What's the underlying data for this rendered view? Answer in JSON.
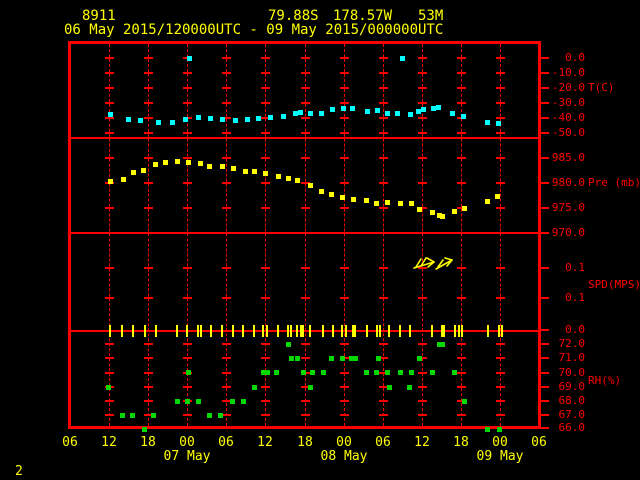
{
  "header": {
    "station_id": "8911",
    "lat": "79.88S",
    "lon": "178.57W",
    "elevation": "53M",
    "time_range": "06 May 2015/120000UTC - 09 May 2015/000000UTC"
  },
  "page_number": "2",
  "x_axis": {
    "hour_labels": [
      "06",
      "12",
      "18",
      "00",
      "06",
      "12",
      "18",
      "00",
      "06",
      "12",
      "18",
      "00",
      "06"
    ],
    "date_labels": [
      "07 May",
      "08 May",
      "09 May"
    ]
  },
  "y_axes": {
    "temperature": {
      "unit_label": "T(C)",
      "tick_labels": [
        "0.0",
        "-10.0",
        "-20.0",
        "-30.0",
        "-40.0",
        "-50.0"
      ]
    },
    "pressure": {
      "unit_label": "Pre (mb)",
      "tick_labels": [
        "985.0",
        "980.0",
        "975.0",
        "970.0"
      ]
    },
    "wind": {
      "unit_label": "SPD(MPS)",
      "tick_labels": [
        "0.1",
        "0.1",
        "0.0"
      ]
    },
    "humidity": {
      "unit_label": "RH(%)",
      "tick_labels": [
        "72.0",
        "71.0",
        "70.0",
        "69.0",
        "68.0",
        "67.0",
        "66.0"
      ]
    }
  },
  "colors": {
    "background": "#000000",
    "frame": "#ff0000",
    "text_yellow": "#ffff00",
    "temperature": "#00ffff",
    "pressure": "#ffff00",
    "wind": "#ffff00",
    "humidity": "#00d800"
  },
  "chart_data": [
    {
      "type": "scatter",
      "series_key": "temperature",
      "name": "Temperature",
      "ylabel": "T(C)",
      "x_unit": "hours since 06 May 2015 06UTC",
      "xlim": [
        0,
        72
      ],
      "ylim": [
        -55,
        5
      ],
      "points": [
        [
          6.1,
          -37.3
        ],
        [
          8.9,
          -40.7
        ],
        [
          10.7,
          -41.3
        ],
        [
          13.5,
          -42.7
        ],
        [
          15.7,
          -42.7
        ],
        [
          17.7,
          -40.7
        ],
        [
          18.3,
          0.0
        ],
        [
          19.7,
          -39.3
        ],
        [
          21.5,
          -40.0
        ],
        [
          23.3,
          -40.7
        ],
        [
          25.3,
          -41.3
        ],
        [
          27.2,
          -40.7
        ],
        [
          28.9,
          -40.0
        ],
        [
          30.7,
          -39.3
        ],
        [
          32.7,
          -38.7
        ],
        [
          34.5,
          -36.7
        ],
        [
          35.3,
          -36.0
        ],
        [
          36.8,
          -36.7
        ],
        [
          38.5,
          -36.7
        ],
        [
          40.2,
          -34.0
        ],
        [
          41.9,
          -33.3
        ],
        [
          43.3,
          -33.3
        ],
        [
          45.6,
          -35.3
        ],
        [
          47.1,
          -34.7
        ],
        [
          48.7,
          -36.7
        ],
        [
          50.2,
          -36.7
        ],
        [
          51.0,
          0.0
        ],
        [
          52.2,
          -37.3
        ],
        [
          53.4,
          -35.3
        ],
        [
          54.2,
          -34.0
        ],
        [
          55.7,
          -33.3
        ],
        [
          56.5,
          -32.7
        ],
        [
          58.6,
          -36.7
        ],
        [
          60.3,
          -38.7
        ],
        [
          64.0,
          -42.7
        ],
        [
          65.7,
          -43.3
        ]
      ]
    },
    {
      "type": "scatter",
      "series_key": "pressure",
      "name": "Pressure",
      "ylabel": "Pre (mb)",
      "x_unit": "hours since 06 May 2015 06UTC",
      "xlim": [
        0,
        72
      ],
      "ylim": [
        968,
        988
      ],
      "points": [
        [
          6.1,
          980.4
        ],
        [
          8.1,
          980.8
        ],
        [
          9.7,
          982.2
        ],
        [
          11.2,
          982.6
        ],
        [
          13.0,
          983.8
        ],
        [
          14.6,
          984.2
        ],
        [
          16.5,
          984.4
        ],
        [
          18.1,
          984.2
        ],
        [
          19.9,
          984.0
        ],
        [
          21.4,
          983.4
        ],
        [
          23.3,
          983.4
        ],
        [
          25.0,
          983.0
        ],
        [
          26.8,
          982.4
        ],
        [
          28.3,
          982.4
        ],
        [
          29.9,
          982.0
        ],
        [
          31.9,
          981.4
        ],
        [
          33.5,
          981.0
        ],
        [
          34.9,
          980.6
        ],
        [
          36.8,
          979.6
        ],
        [
          38.6,
          978.4
        ],
        [
          40.1,
          977.8
        ],
        [
          41.8,
          977.2
        ],
        [
          43.4,
          976.8
        ],
        [
          45.5,
          976.6
        ],
        [
          47.0,
          976.0
        ],
        [
          48.7,
          976.2
        ],
        [
          50.6,
          976.0
        ],
        [
          52.4,
          976.0
        ],
        [
          53.6,
          974.8
        ],
        [
          55.6,
          974.2
        ],
        [
          56.7,
          973.6
        ],
        [
          57.1,
          973.4
        ],
        [
          59.0,
          974.4
        ],
        [
          60.5,
          975.0
        ],
        [
          64.0,
          976.4
        ],
        [
          65.6,
          977.4
        ]
      ]
    },
    {
      "type": "wind-barbs",
      "series_key": "wind",
      "name": "Wind Speed",
      "ylabel": "SPD(MPS)",
      "x_unit": "hours since 06 May 2015 06UTC",
      "xlim": [
        0,
        72
      ],
      "calm_times": [
        6.1,
        8.0,
        9.7,
        11.5,
        13.2,
        16.5,
        17.9,
        19.6,
        20.1,
        21.6,
        23.3,
        25.1,
        26.5,
        28.3,
        29.7,
        30.2,
        31.9,
        33.5,
        34.0,
        34.9,
        35.4,
        35.7,
        36.9,
        38.8,
        40.3,
        41.8,
        42.3,
        43.4,
        43.8,
        45.6,
        47.2,
        47.6,
        49.0,
        50.6,
        52.2,
        55.5,
        57.1,
        57.4,
        59.1,
        59.7,
        60.2,
        64.2,
        65.9,
        66.3
      ],
      "barb_times": [
        54.4,
        57.7
      ]
    },
    {
      "type": "scatter",
      "series_key": "humidity",
      "name": "Relative Humidity",
      "ylabel": "RH(%)",
      "x_unit": "hours since 06 May 2015 06UTC",
      "xlim": [
        0,
        72
      ],
      "ylim": [
        66,
        73
      ],
      "points": [
        [
          5.8,
          69
        ],
        [
          8.0,
          67
        ],
        [
          9.5,
          67
        ],
        [
          11.3,
          66
        ],
        [
          12.7,
          67
        ],
        [
          16.5,
          68
        ],
        [
          17.9,
          68
        ],
        [
          18.1,
          70
        ],
        [
          19.6,
          68
        ],
        [
          21.4,
          67
        ],
        [
          23.1,
          67
        ],
        [
          24.8,
          68
        ],
        [
          26.5,
          68
        ],
        [
          28.3,
          69
        ],
        [
          29.7,
          70
        ],
        [
          30.3,
          70
        ],
        [
          31.7,
          70
        ],
        [
          33.5,
          72
        ],
        [
          34.0,
          71
        ],
        [
          34.8,
          71
        ],
        [
          35.7,
          70
        ],
        [
          36.8,
          69
        ],
        [
          37.1,
          70
        ],
        [
          38.8,
          70
        ],
        [
          40.1,
          71
        ],
        [
          41.8,
          71
        ],
        [
          43.2,
          71
        ],
        [
          43.7,
          71
        ],
        [
          45.5,
          70
        ],
        [
          47.0,
          70
        ],
        [
          47.3,
          71
        ],
        [
          48.7,
          70
        ],
        [
          48.9,
          69
        ],
        [
          50.6,
          70
        ],
        [
          52.1,
          69
        ],
        [
          52.4,
          70
        ],
        [
          53.6,
          71
        ],
        [
          55.6,
          70
        ],
        [
          56.7,
          72
        ],
        [
          57.1,
          72
        ],
        [
          59.0,
          70
        ],
        [
          60.5,
          68
        ],
        [
          64.0,
          66
        ],
        [
          65.9,
          66
        ]
      ]
    }
  ]
}
